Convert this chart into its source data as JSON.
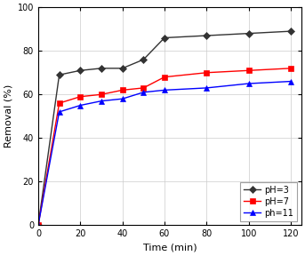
{
  "title": "",
  "xlabel": "Time (min)",
  "ylabel": "Removal (%)",
  "xlim": [
    0,
    125
  ],
  "ylim": [
    0,
    100
  ],
  "xticks": [
    0,
    20,
    40,
    60,
    80,
    100,
    120
  ],
  "yticks": [
    0,
    20,
    40,
    60,
    80,
    100
  ],
  "series": [
    {
      "label": "pH=3",
      "color": "#333333",
      "marker": "D",
      "markersize": 4,
      "x": [
        0,
        10,
        20,
        30,
        40,
        50,
        60,
        80,
        100,
        120
      ],
      "y": [
        0,
        69,
        71,
        72,
        72,
        76,
        86,
        87,
        88,
        89
      ]
    },
    {
      "label": "pH=7",
      "color": "#ff0000",
      "marker": "s",
      "markersize": 4,
      "x": [
        0,
        10,
        20,
        30,
        40,
        50,
        60,
        80,
        100,
        120
      ],
      "y": [
        0,
        56,
        59,
        60,
        62,
        63,
        68,
        70,
        71,
        72
      ]
    },
    {
      "label": "ph=11",
      "color": "#0000ff",
      "marker": "^",
      "markersize": 4,
      "x": [
        0,
        10,
        20,
        30,
        40,
        50,
        60,
        80,
        100,
        120
      ],
      "y": [
        0,
        52,
        55,
        57,
        58,
        61,
        62,
        63,
        65,
        66
      ]
    }
  ],
  "legend_loc": "lower right",
  "grid": true,
  "background_color": "#ffffff",
  "figsize": [
    3.43,
    2.88
  ],
  "dpi": 100
}
